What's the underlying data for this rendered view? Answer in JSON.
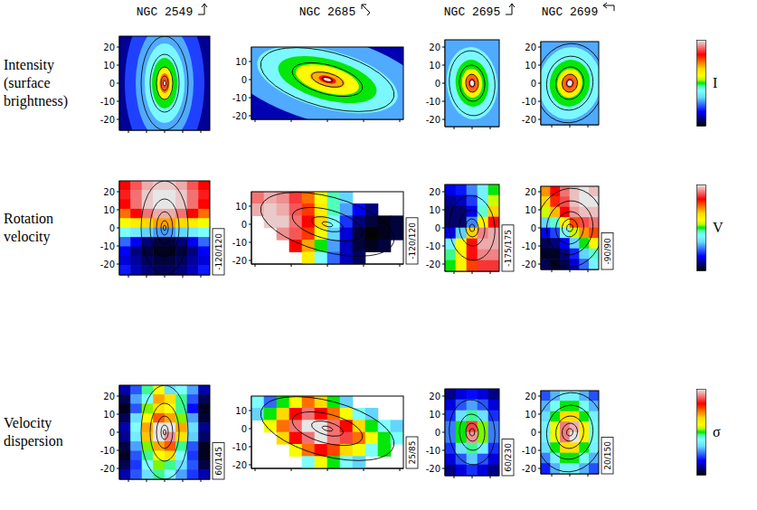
{
  "chart_data": {
    "type": "heatmap",
    "tick_labels": "y",
    "rows": [
      {
        "label": [
          "Intensity",
          "(surface",
          "brightness)"
        ],
        "colorbar_label": "I"
      },
      {
        "label": [
          "Rotation",
          "velocity"
        ],
        "colorbar_label": "V"
      },
      {
        "label": [
          "Velocity",
          "dispersion"
        ],
        "colorbar_label": "σ"
      }
    ],
    "galaxies": [
      {
        "name": "NGC 2549",
        "xlim": [
          -25,
          25
        ],
        "ylim": [
          -26,
          26
        ],
        "xticks": [
          -20,
          -10,
          0,
          10,
          20
        ],
        "yticks": [
          -20,
          -10,
          0,
          10,
          20
        ],
        "isophotes": {
          "axis_ratio": 0.5,
          "pa": 90,
          "contours": [
            1.5,
            4,
            9,
            16,
            26
          ]
        },
        "maps": [
          {
            "clim": [
              0,
              1
            ],
            "background": 0.1,
            "levels": [
              {
                "a": 44,
                "value": 0.22
              },
              {
                "a": 32,
                "value": 0.3
              },
              {
                "a": 22,
                "value": 0.4
              },
              {
                "a": 14,
                "value": 0.5
              },
              {
                "a": 9,
                "value": 0.62
              },
              {
                "a": 5.5,
                "value": 0.75
              },
              {
                "a": 3,
                "value": 0.88
              },
              {
                "a": 1.5,
                "value": 1.0
              }
            ]
          },
          {
            "clim": [
              -120,
              120
            ],
            "range_label": "-120/120",
            "cells": [
              [
                80,
                95,
                110,
                115,
                115,
                110,
                95,
                80
              ],
              [
                85,
                100,
                115,
                120,
                120,
                115,
                100,
                85
              ],
              [
                80,
                100,
                115,
                120,
                120,
                115,
                100,
                80
              ],
              [
                60,
                80,
                100,
                110,
                110,
                100,
                80,
                60
              ],
              [
                20,
                30,
                40,
                50,
                50,
                40,
                30,
                20
              ],
              [
                -20,
                -30,
                -40,
                -50,
                -50,
                -40,
                -30,
                -20
              ],
              [
                -60,
                -80,
                -100,
                -110,
                -110,
                -100,
                -80,
                -60
              ],
              [
                -80,
                -100,
                -110,
                -115,
                -115,
                -110,
                -100,
                -80
              ],
              [
                -85,
                -95,
                -105,
                -110,
                -110,
                -105,
                -95,
                -85
              ],
              [
                -75,
                -90,
                -100,
                -105,
                -105,
                -100,
                -90,
                -75
              ]
            ]
          },
          {
            "clim": [
              60,
              145
            ],
            "range_label": "60/145",
            "cells": [
              [
                70,
                80,
                100,
                110,
                90,
                95,
                85,
                70
              ],
              [
                65,
                85,
                95,
                120,
                115,
                100,
                80,
                65
              ],
              [
                62,
                80,
                105,
                115,
                110,
                100,
                75,
                62
              ],
              [
                65,
                90,
                110,
                125,
                120,
                105,
                85,
                63
              ],
              [
                70,
                95,
                120,
                145,
                145,
                120,
                90,
                68
              ],
              [
                68,
                92,
                118,
                145,
                140,
                115,
                88,
                66
              ],
              [
                64,
                85,
                105,
                120,
                125,
                100,
                80,
                62
              ],
              [
                62,
                80,
                100,
                110,
                115,
                95,
                78,
                62
              ],
              [
                65,
                78,
                95,
                105,
                100,
                90,
                80,
                64
              ],
              [
                70,
                80,
                90,
                100,
                95,
                85,
                78,
                70
              ]
            ]
          }
        ]
      },
      {
        "name": "NGC 2685",
        "xlim": [
          -42,
          42
        ],
        "ylim": [
          -22,
          18
        ],
        "xticks": [
          -40,
          -20,
          0,
          20,
          40
        ],
        "yticks": [
          -20,
          -10,
          0,
          10
        ],
        "isophotes": {
          "axis_ratio": 0.4,
          "pa": -15,
          "contours": [
            3,
            9,
            20,
            38
          ]
        },
        "maps": [
          {
            "clim": [
              0,
              1
            ],
            "background": 0.12,
            "levels": [
              {
                "a": 60,
                "value": 0.3
              },
              {
                "a": 40,
                "value": 0.4
              },
              {
                "a": 28,
                "value": 0.5
              },
              {
                "a": 18,
                "value": 0.6
              },
              {
                "a": 10,
                "value": 0.7
              },
              {
                "a": 5,
                "value": 0.85
              },
              {
                "a": 2,
                "value": 1.0
              }
            ]
          },
          {
            "clim": [
              -120,
              120
            ],
            "range_label": "-120/120",
            "cells": [
              [
                100,
                110,
                105,
                90,
                60,
                20,
                -10,
                -40,
                null,
                null,
                null,
                null
              ],
              [
                110,
                115,
                110,
                95,
                70,
                30,
                -10,
                -50,
                -80,
                -100,
                null,
                null
              ],
              [
                null,
                115,
                115,
                100,
                80,
                40,
                -20,
                -70,
                -100,
                -110,
                -115,
                -110
              ],
              [
                null,
                null,
                105,
                95,
                70,
                20,
                -40,
                -85,
                -110,
                -120,
                -115,
                -110
              ],
              [
                null,
                null,
                null,
                80,
                50,
                0,
                -50,
                -90,
                -110,
                -115,
                -110,
                null
              ],
              [
                null,
                null,
                null,
                null,
                30,
                -20,
                -60,
                -90,
                -105,
                null,
                null,
                null
              ]
            ]
          },
          {
            "clim": [
              25,
              85
            ],
            "range_label": "25/85",
            "cells": [
              [
                50,
                40,
                55,
                60,
                70,
                65,
                55,
                45,
                null,
                null,
                null,
                null
              ],
              [
                45,
                55,
                65,
                75,
                80,
                75,
                70,
                60,
                50,
                45,
                null,
                null
              ],
              [
                null,
                60,
                70,
                80,
                85,
                85,
                80,
                75,
                65,
                55,
                50,
                45
              ],
              [
                null,
                null,
                65,
                75,
                80,
                85,
                80,
                78,
                70,
                60,
                55,
                50
              ],
              [
                null,
                null,
                null,
                60,
                70,
                75,
                72,
                65,
                60,
                50,
                55,
                null
              ],
              [
                null,
                null,
                null,
                null,
                50,
                60,
                55,
                50,
                45,
                null,
                null,
                null
              ]
            ]
          }
        ]
      },
      {
        "name": "NGC 2695",
        "xlim": [
          -15,
          15
        ],
        "ylim": [
          -24,
          24
        ],
        "xticks": [
          -10,
          0,
          10
        ],
        "yticks": [
          -20,
          -10,
          0,
          10,
          20
        ],
        "isophotes": {
          "axis_ratio": 0.7,
          "pa": 95,
          "contours": [
            2,
            5,
            10,
            18
          ]
        },
        "maps": [
          {
            "clim": [
              0,
              1
            ],
            "background": 0.15,
            "levels": [
              {
                "a": 35,
                "value": 0.3
              },
              {
                "a": 20,
                "value": 0.4
              },
              {
                "a": 13,
                "value": 0.5
              },
              {
                "a": 8,
                "value": 0.62
              },
              {
                "a": 5,
                "value": 0.75
              },
              {
                "a": 3,
                "value": 0.88
              },
              {
                "a": 1.5,
                "value": 1.0
              }
            ]
          },
          {
            "clim": [
              -175,
              175
            ],
            "range_label": "-175/175",
            "cells": [
              [
                -120,
                -110,
                -80,
                -40,
                0
              ],
              [
                -140,
                -130,
                -100,
                -40,
                20
              ],
              [
                -150,
                -150,
                -120,
                -20,
                60
              ],
              [
                -150,
                -150,
                -80,
                40,
                120
              ],
              [
                -120,
                -60,
                60,
                150,
                160
              ],
              [
                -40,
                30,
                120,
                160,
                160
              ],
              [
                -10,
                40,
                120,
                150,
                150
              ],
              [
                0,
                40,
                100,
                130,
                130
              ]
            ]
          },
          {
            "clim": [
              60,
              230
            ],
            "range_label": "60/230",
            "cells": [
              [
                75,
                85,
                90,
                85,
                75
              ],
              [
                85,
                100,
                110,
                100,
                85
              ],
              [
                95,
                120,
                140,
                120,
                95
              ],
              [
                105,
                145,
                210,
                150,
                105
              ],
              [
                105,
                145,
                220,
                150,
                105
              ],
              [
                95,
                120,
                140,
                125,
                95
              ],
              [
                85,
                100,
                115,
                100,
                85
              ],
              [
                75,
                85,
                95,
                85,
                75
              ]
            ]
          }
        ]
      },
      {
        "name": "NGC 2699",
        "xlim": [
          -16,
          16
        ],
        "ylim": [
          -23,
          23
        ],
        "xticks": [
          -10,
          0,
          10
        ],
        "yticks": [
          -20,
          -10,
          0,
          10,
          20
        ],
        "isophotes": {
          "axis_ratio": 0.85,
          "pa": 80,
          "contours": [
            2,
            5,
            9,
            15,
            22
          ]
        },
        "maps": [
          {
            "clim": [
              0,
              1
            ],
            "background": 0.12,
            "levels": [
              {
                "a": 35,
                "value": 0.3
              },
              {
                "a": 20,
                "value": 0.4
              },
              {
                "a": 13,
                "value": 0.5
              },
              {
                "a": 8,
                "value": 0.62
              },
              {
                "a": 5,
                "value": 0.75
              },
              {
                "a": 3,
                "value": 0.88
              },
              {
                "a": 1.5,
                "value": 1.0
              }
            ]
          },
          {
            "clim": [
              -90,
              90
            ],
            "range_label": "-90/90",
            "cells": [
              [
                40,
                60,
                75,
                85,
                90,
                85
              ],
              [
                30,
                55,
                70,
                85,
                90,
                90
              ],
              [
                10,
                35,
                60,
                80,
                85,
                85
              ],
              [
                -30,
                -10,
                20,
                50,
                70,
                75
              ],
              [
                -60,
                -50,
                -20,
                10,
                40,
                50
              ],
              [
                -80,
                -75,
                -60,
                -30,
                0,
                20
              ],
              [
                -85,
                -85,
                -75,
                -55,
                -30,
                -10
              ],
              [
                -80,
                -85,
                -80,
                -65,
                -45,
                -20
              ]
            ]
          },
          {
            "clim": [
              20,
              150
            ],
            "range_label": "20/150",
            "cells": [
              [
                50,
                60,
                70,
                70,
                60,
                50
              ],
              [
                60,
                75,
                85,
                85,
                75,
                60
              ],
              [
                65,
                85,
                105,
                105,
                85,
                70
              ],
              [
                70,
                95,
                140,
                145,
                100,
                75
              ],
              [
                70,
                95,
                140,
                150,
                100,
                75
              ],
              [
                65,
                85,
                105,
                105,
                85,
                70
              ],
              [
                55,
                70,
                85,
                85,
                75,
                60
              ],
              [
                45,
                60,
                70,
                70,
                60,
                50
              ]
            ]
          }
        ]
      }
    ]
  }
}
